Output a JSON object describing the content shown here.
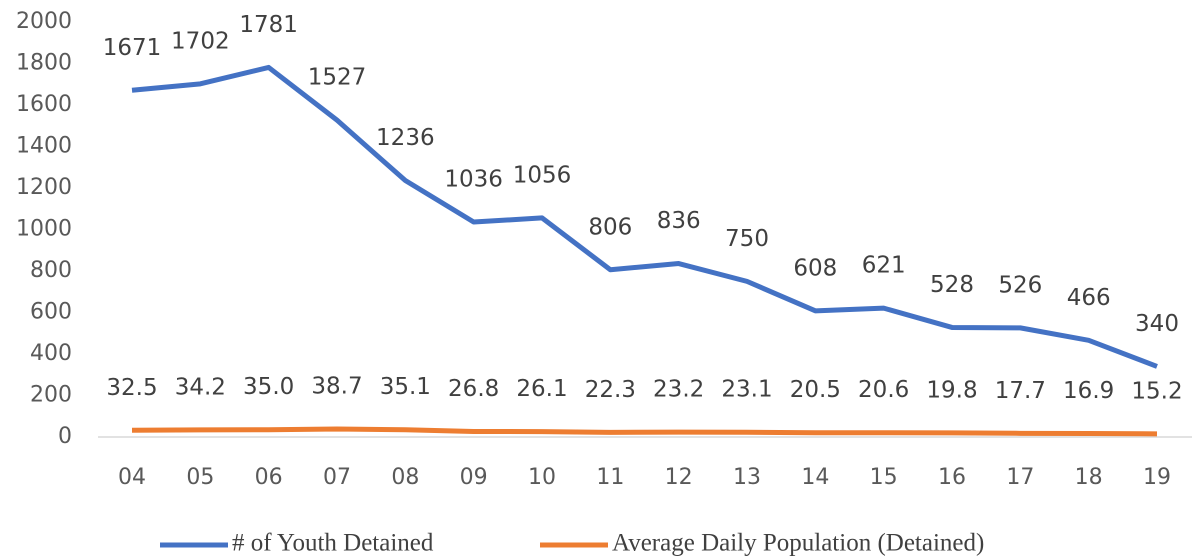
{
  "chart_data": {
    "type": "line",
    "categories": [
      "04",
      "05",
      "06",
      "07",
      "08",
      "09",
      "10",
      "11",
      "12",
      "13",
      "14",
      "15",
      "16",
      "17",
      "18",
      "19"
    ],
    "series": [
      {
        "name": "# of Youth Detained",
        "color": "#4472c4",
        "values": [
          1671,
          1702,
          1781,
          1527,
          1236,
          1036,
          1056,
          806,
          836,
          750,
          608,
          621,
          528,
          526,
          466,
          340
        ]
      },
      {
        "name": "Average Daily Population (Detained)",
        "color": "#ed7d31",
        "values": [
          32.5,
          34.2,
          35,
          38.7,
          35.1,
          26.8,
          26.1,
          22.3,
          23.2,
          23.1,
          20.5,
          20.6,
          19.8,
          17.7,
          16.9,
          15.2
        ],
        "value_labels": [
          "32.5",
          "34.2",
          "35.0",
          "38.7",
          "35.1",
          "26.8",
          "26.1",
          "22.3",
          "23.2",
          "23.1",
          "20.5",
          "20.6",
          "19.8",
          "17.7",
          "16.9",
          "15.2"
        ]
      }
    ],
    "ylim": [
      0,
      2000
    ],
    "yticks": [
      0,
      200,
      400,
      600,
      800,
      1000,
      1200,
      1400,
      1600,
      1800,
      2000
    ],
    "grid": false,
    "legend": "bottom"
  }
}
